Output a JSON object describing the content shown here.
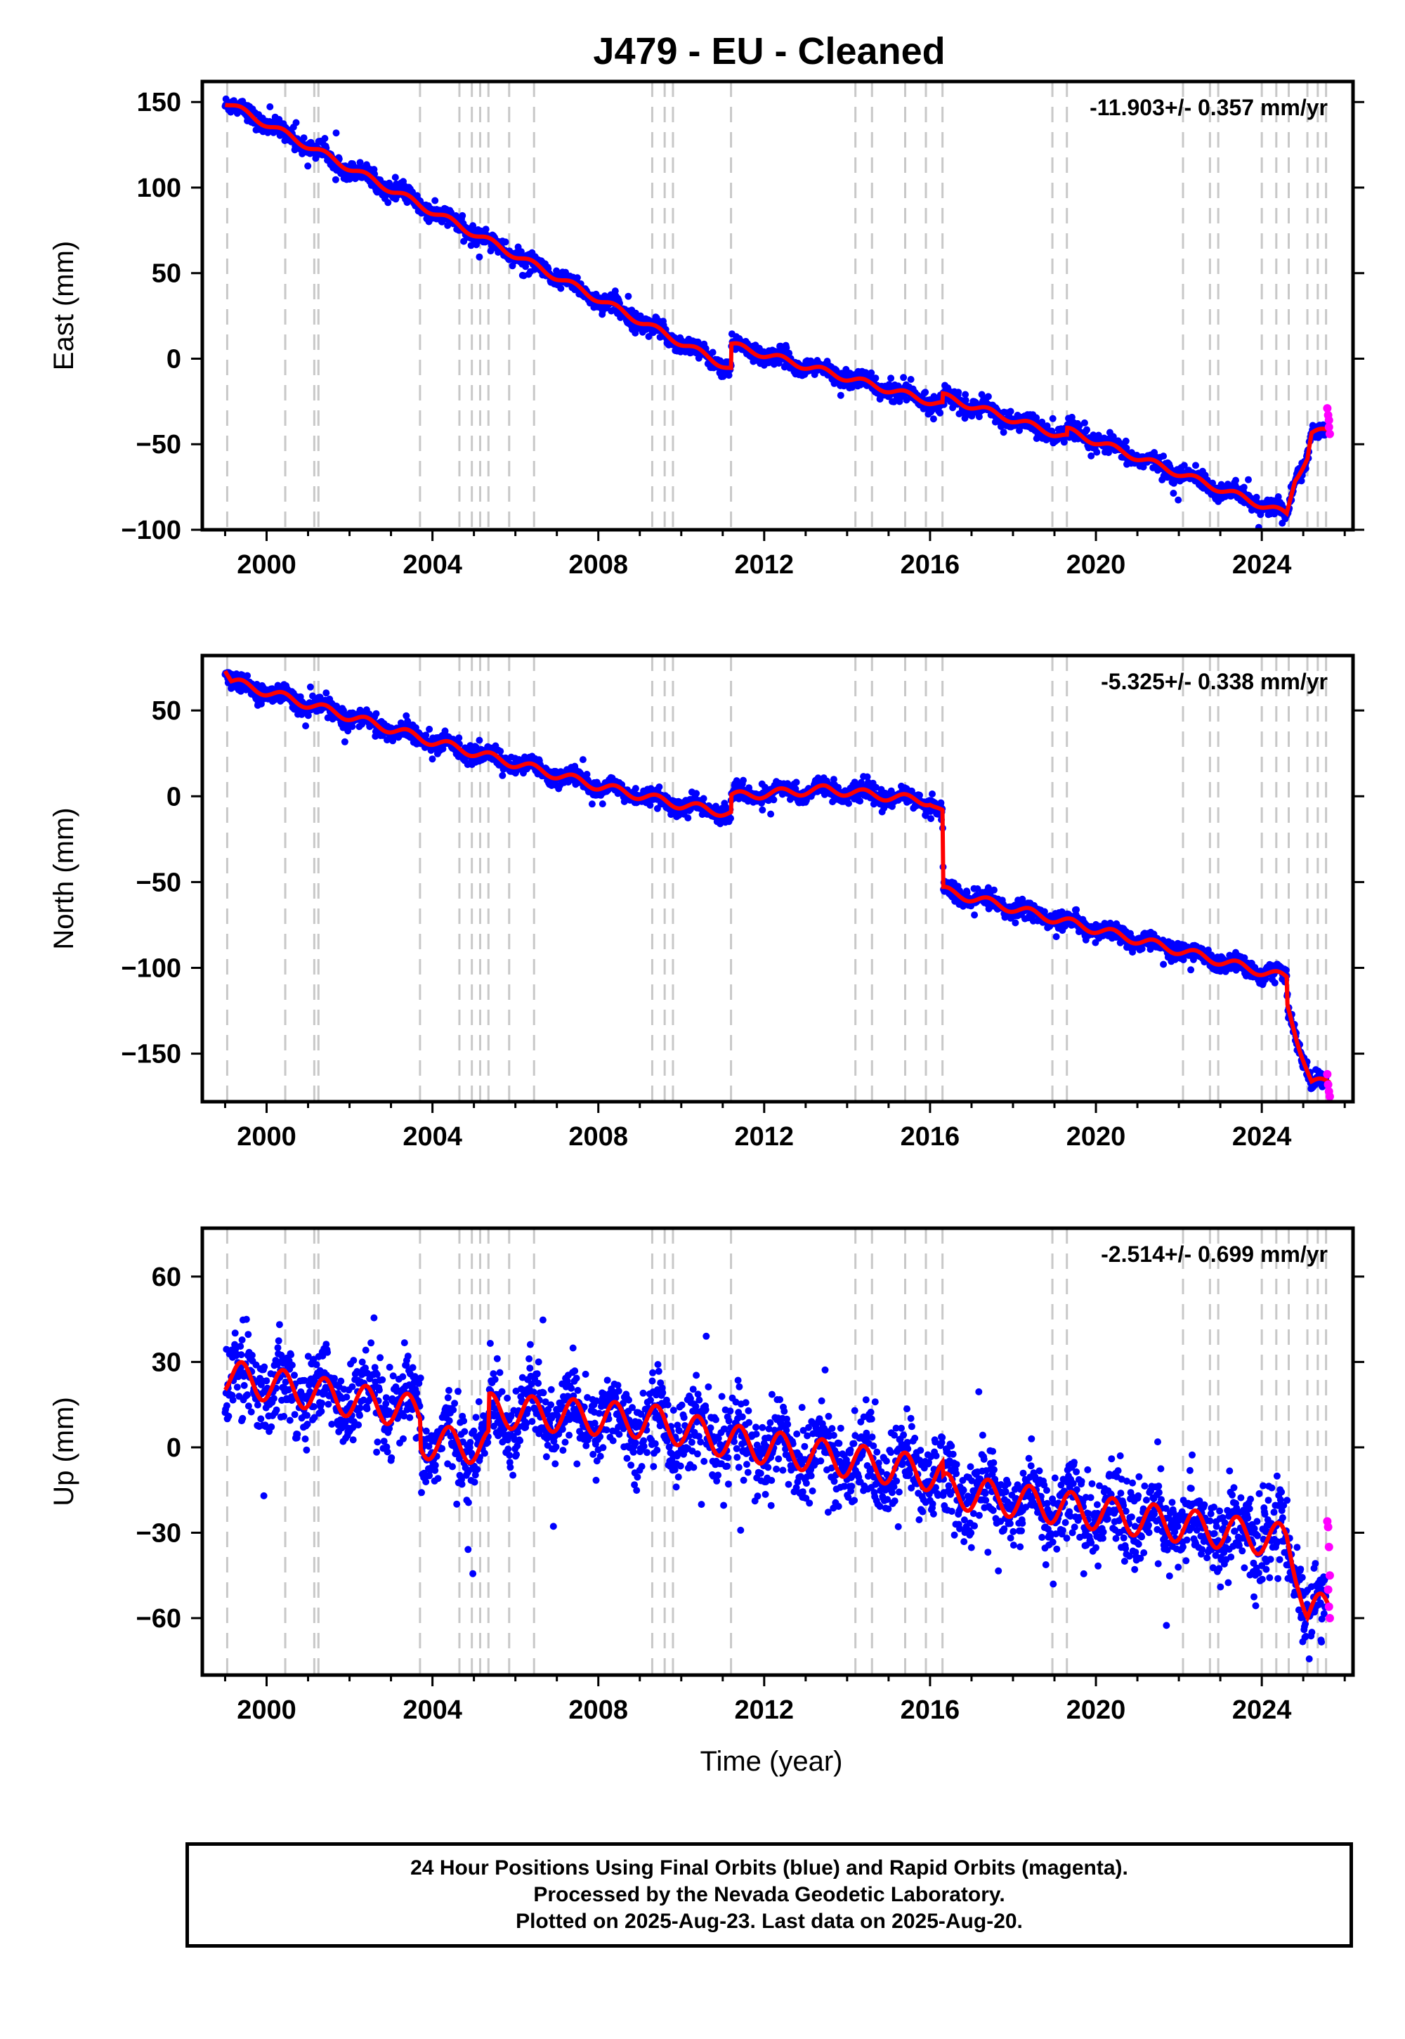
{
  "title": "J479  - EU - Cleaned",
  "xlabel": "Time (year)",
  "footer": {
    "line1": "24 Hour Positions Using Final Orbits (blue) and Rapid Orbits (magenta).",
    "line2": "Processed by the Nevada Geodetic Laboratory.",
    "line3": "Plotted on 2025-Aug-23. Last data on 2025-Aug-20."
  },
  "colors": {
    "final_orbits": "#0000ff",
    "rapid_orbits": "#ff00ff",
    "model_fit": "#ff0000",
    "event_lines": "#c8c8c8"
  },
  "chart_data": [
    {
      "type": "scatter",
      "panel": "east",
      "ylabel": "East (mm)",
      "rate_label": "-11.903+/- 0.357 mm/yr",
      "xlim": [
        1998.45,
        2026.2
      ],
      "ylim": [
        -100,
        162
      ],
      "xticks": [
        2000,
        2004,
        2008,
        2012,
        2016,
        2020,
        2024
      ],
      "yticks": [
        -100,
        -50,
        0,
        50,
        100,
        150
      ],
      "ytick_labels": [
        "−100",
        "−50",
        "0",
        "50",
        "100",
        "150"
      ],
      "grid": false,
      "event_lines": [
        1999.05,
        2000.45,
        2001.15,
        2001.25,
        2003.7,
        2004.65,
        2004.95,
        2005.15,
        2005.35,
        2005.85,
        2006.45,
        2009.3,
        2009.6,
        2009.8,
        2011.2,
        2014.2,
        2014.6,
        2015.4,
        2015.9,
        2016.3,
        2018.95,
        2019.3,
        2022.1,
        2022.75,
        2022.95,
        2024.0,
        2024.35,
        2024.65,
        2025.1,
        2025.35,
        2025.55
      ],
      "noise_mm": 2.5,
      "model": {
        "anchors": [
          [
            1999.0,
            150
          ],
          [
            2011.2,
            -6
          ],
          [
            2011.21,
            8
          ],
          [
            2016.3,
            -27
          ],
          [
            2016.31,
            -22
          ],
          [
            2019.3,
            -46
          ],
          [
            2019.31,
            -42
          ],
          [
            2024.6,
            -91
          ],
          [
            2024.8,
            -70
          ],
          [
            2025.1,
            -58
          ],
          [
            2025.2,
            -44
          ],
          [
            2025.65,
            -42
          ]
        ],
        "seasonal_amplitude": 2.0
      },
      "rapid_points": [
        [
          2025.58,
          -29
        ],
        [
          2025.6,
          -33
        ],
        [
          2025.62,
          -40
        ],
        [
          2025.64,
          -44
        ],
        [
          2025.62,
          -36
        ]
      ]
    },
    {
      "type": "scatter",
      "panel": "north",
      "ylabel": "North (mm)",
      "rate_label": "-5.325+/- 0.338 mm/yr",
      "xlim": [
        1998.45,
        2026.2
      ],
      "ylim": [
        -178,
        82
      ],
      "xticks": [
        2000,
        2004,
        2008,
        2012,
        2016,
        2020,
        2024
      ],
      "yticks": [
        -150,
        -100,
        -50,
        0,
        50
      ],
      "ytick_labels": [
        "−150",
        "−100",
        "−50",
        "0",
        "50"
      ],
      "grid": false,
      "event_lines": [
        1999.05,
        2000.45,
        2001.15,
        2001.25,
        2003.7,
        2004.65,
        2004.95,
        2005.15,
        2005.35,
        2005.85,
        2006.45,
        2009.3,
        2009.6,
        2009.8,
        2011.2,
        2014.2,
        2014.6,
        2015.4,
        2015.9,
        2016.3,
        2018.95,
        2019.3,
        2022.1,
        2022.75,
        2022.95,
        2024.0,
        2024.35,
        2024.65,
        2025.1,
        2025.35,
        2025.55
      ],
      "noise_mm": 2.5,
      "model": {
        "anchors": [
          [
            1999.0,
            75
          ],
          [
            1999.15,
            67
          ],
          [
            2004.0,
            32
          ],
          [
            2008.0,
            6
          ],
          [
            2010.0,
            -5
          ],
          [
            2011.2,
            -10
          ],
          [
            2011.21,
            0
          ],
          [
            2013.5,
            4
          ],
          [
            2016.0,
            -3
          ],
          [
            2016.3,
            -10
          ],
          [
            2016.32,
            -55
          ],
          [
            2024.3,
            -104
          ],
          [
            2024.6,
            -106
          ],
          [
            2024.62,
            -122
          ],
          [
            2024.9,
            -145
          ],
          [
            2025.2,
            -167
          ],
          [
            2025.6,
            -167
          ]
        ],
        "seasonal_amplitude": 2.5
      },
      "rapid_points": [
        [
          2025.58,
          -162
        ],
        [
          2025.6,
          -168
        ],
        [
          2025.62,
          -172
        ],
        [
          2025.64,
          -175
        ]
      ]
    },
    {
      "type": "scatter",
      "panel": "up",
      "ylabel": "Up (mm)",
      "rate_label": "-2.514+/- 0.699 mm/yr",
      "xlim": [
        1998.45,
        2026.2
      ],
      "ylim": [
        -80,
        77
      ],
      "xticks": [
        2000,
        2004,
        2008,
        2012,
        2016,
        2020,
        2024
      ],
      "yticks": [
        -60,
        -30,
        0,
        30,
        60
      ],
      "ytick_labels": [
        "−60",
        "−30",
        "0",
        "30",
        "60"
      ],
      "grid": false,
      "event_lines": [
        1999.05,
        2000.45,
        2001.15,
        2001.25,
        2003.7,
        2004.65,
        2004.95,
        2005.15,
        2005.35,
        2005.85,
        2006.45,
        2009.3,
        2009.6,
        2009.8,
        2011.2,
        2014.2,
        2014.6,
        2015.4,
        2015.9,
        2016.3,
        2018.95,
        2019.3,
        2022.1,
        2022.75,
        2022.95,
        2024.0,
        2024.35,
        2024.65,
        2025.1,
        2025.35,
        2025.55
      ],
      "noise_mm": 7,
      "model": {
        "anchors": [
          [
            1999.0,
            25
          ],
          [
            2003.7,
            12
          ],
          [
            2003.72,
            2
          ],
          [
            2005.35,
            0
          ],
          [
            2005.37,
            13
          ],
          [
            2009.3,
            9
          ],
          [
            2011.2,
            2
          ],
          [
            2016.3,
            -10
          ],
          [
            2016.32,
            -15
          ],
          [
            2024.6,
            -33
          ],
          [
            2024.9,
            -45
          ],
          [
            2025.1,
            -58
          ],
          [
            2025.6,
            -57
          ]
        ],
        "seasonal_amplitude": 6
      },
      "rapid_points": [
        [
          2025.58,
          -26
        ],
        [
          2025.6,
          -28
        ],
        [
          2025.62,
          -35
        ],
        [
          2025.64,
          -45
        ],
        [
          2025.6,
          -50
        ],
        [
          2025.62,
          -56
        ],
        [
          2025.64,
          -60
        ]
      ]
    }
  ]
}
